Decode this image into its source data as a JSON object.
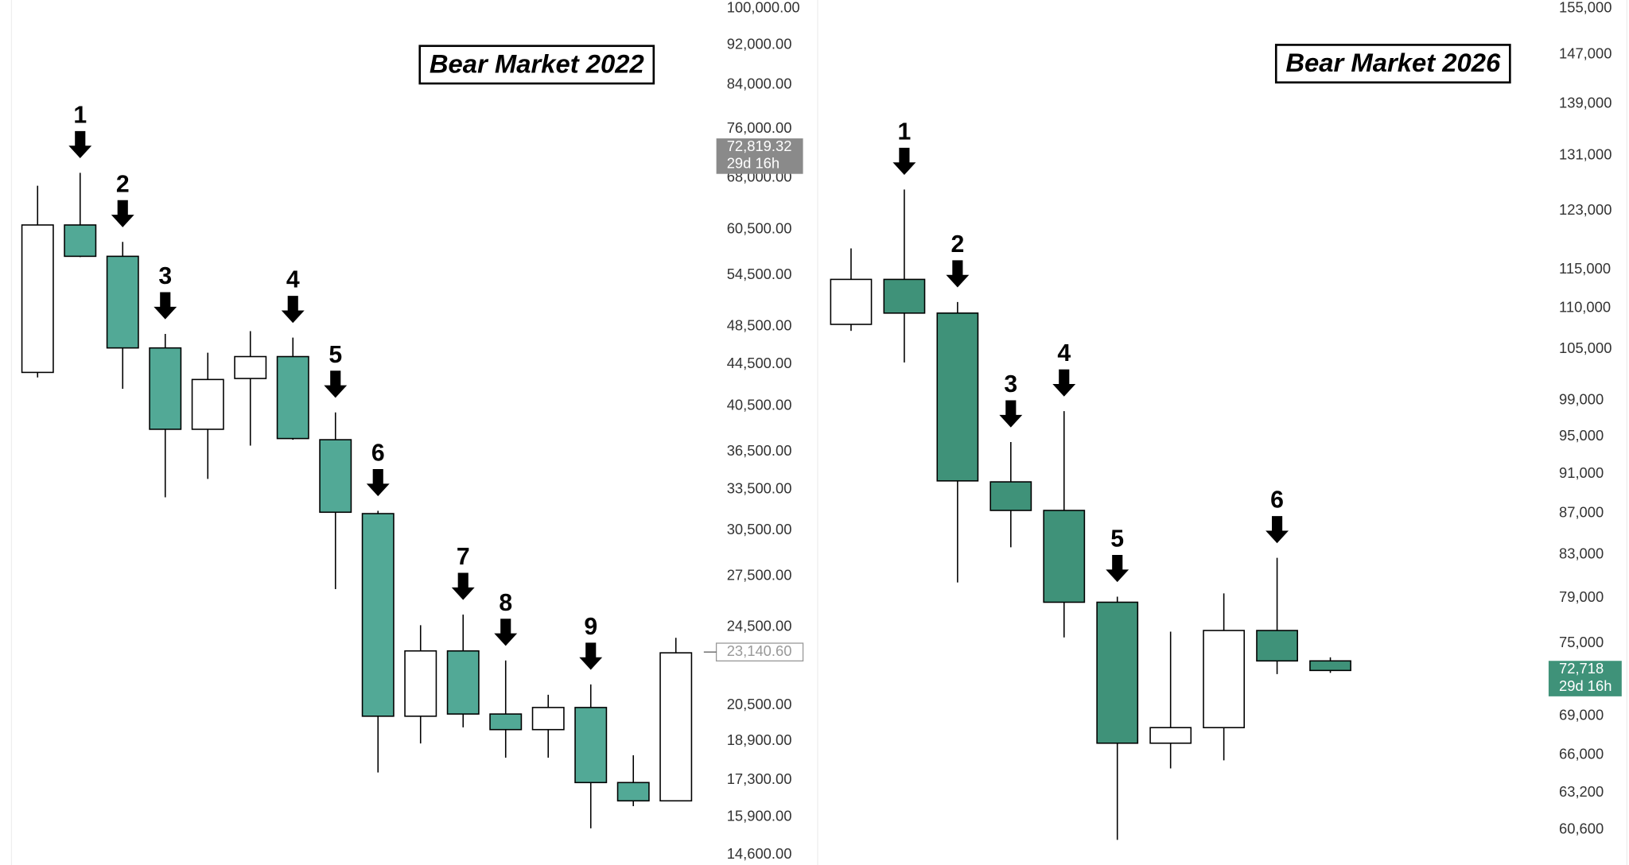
{
  "chart_data": [
    {
      "type": "candlestick",
      "title": "Bear Market 2022",
      "log_scale": true,
      "up_color": "#ffffff",
      "down_color": "#52a996",
      "open": [
        43700,
        61100,
        56900,
        46200,
        38400,
        43100,
        45300,
        37500,
        31700,
        20000,
        23200,
        20100,
        19400,
        20400,
        17200,
        16500
      ],
      "high": [
        66800,
        68800,
        58800,
        47700,
        45700,
        48000,
        47300,
        39900,
        31900,
        24600,
        25200,
        22700,
        21000,
        21500,
        18300,
        23900
      ],
      "low": [
        43200,
        56800,
        42100,
        32900,
        34300,
        37000,
        37500,
        26700,
        17600,
        18800,
        19500,
        18200,
        18200,
        15500,
        16300,
        16500
      ],
      "close": [
        61100,
        56900,
        46200,
        38400,
        43000,
        45300,
        37600,
        31800,
        20000,
        23200,
        20100,
        19400,
        20400,
        17200,
        16500,
        23100
      ],
      "arrow_labels": [
        null,
        "1",
        "2",
        "3",
        null,
        null,
        "4",
        "5",
        "6",
        null,
        "7",
        "8",
        null,
        "9",
        null,
        null
      ],
      "ylim": [
        14260,
        101900
      ],
      "yticks": [
        {
          "value": 100000,
          "label": "100,000.00"
        },
        {
          "value": 92000,
          "label": "92,000.00"
        },
        {
          "value": 84000,
          "label": "84,000.00"
        },
        {
          "value": 76000,
          "label": "76,000.00"
        },
        {
          "value": 68000,
          "label": "68,000.00"
        },
        {
          "value": 60500,
          "label": "60,500.00"
        },
        {
          "value": 54500,
          "label": "54,500.00"
        },
        {
          "value": 48500,
          "label": "48,500.00"
        },
        {
          "value": 44500,
          "label": "44,500.00"
        },
        {
          "value": 40500,
          "label": "40,500.00"
        },
        {
          "value": 36500,
          "label": "36,500.00"
        },
        {
          "value": 33500,
          "label": "33,500.00"
        },
        {
          "value": 30500,
          "label": "30,500.00"
        },
        {
          "value": 27500,
          "label": "27,500.00"
        },
        {
          "value": 24500,
          "label": "24,500.00"
        },
        {
          "value": 20500,
          "label": "20,500.00"
        },
        {
          "value": 18900,
          "label": "18,900.00"
        },
        {
          "value": 17300,
          "label": "17,300.00"
        },
        {
          "value": 15900,
          "label": "15,900.00"
        },
        {
          "value": 14600,
          "label": "14,600.00"
        }
      ],
      "price_tags": [
        {
          "value": 72819.32,
          "label": "72,819.32",
          "countdown": "29d 16h",
          "color": "#8a8a8a"
        },
        {
          "value": 23140.6,
          "label": "23,140.60",
          "color": "#ffffff"
        }
      ]
    },
    {
      "type": "candlestick",
      "title": "Bear Market 2026",
      "log_scale": true,
      "up_color": "#ffffff",
      "down_color": "#3f9279",
      "open": [
        108000,
        113700,
        109400,
        90200,
        87300,
        78600,
        66900,
        68100,
        76100,
        73500
      ],
      "high": [
        117800,
        126000,
        110800,
        94400,
        97800,
        79100,
        76000,
        79400,
        82700,
        73800
      ],
      "low": [
        107200,
        103400,
        80400,
        83700,
        75500,
        59900,
        65000,
        65600,
        72400,
        72500
      ],
      "close": [
        113700,
        109400,
        90300,
        87300,
        78600,
        66900,
        68100,
        76100,
        73500,
        72700
      ],
      "arrow_labels": [
        null,
        "1",
        "2",
        "3",
        "4",
        "5",
        null,
        null,
        "6",
        null
      ],
      "ylim": [
        58200,
        156500
      ],
      "yticks": [
        {
          "value": 155000,
          "label": "155,000"
        },
        {
          "value": 147000,
          "label": "147,000"
        },
        {
          "value": 139000,
          "label": "139,000"
        },
        {
          "value": 131000,
          "label": "131,000"
        },
        {
          "value": 123000,
          "label": "123,000"
        },
        {
          "value": 115000,
          "label": "115,000"
        },
        {
          "value": 110000,
          "label": "110,000"
        },
        {
          "value": 105000,
          "label": "105,000"
        },
        {
          "value": 99000,
          "label": "99,000"
        },
        {
          "value": 95000,
          "label": "95,000"
        },
        {
          "value": 91000,
          "label": "91,000"
        },
        {
          "value": 87000,
          "label": "87,000"
        },
        {
          "value": 83000,
          "label": "83,000"
        },
        {
          "value": 79000,
          "label": "79,000"
        },
        {
          "value": 75000,
          "label": "75,000"
        },
        {
          "value": 69000,
          "label": "69,000"
        },
        {
          "value": 66000,
          "label": "66,000"
        },
        {
          "value": 63200,
          "label": "63,200"
        },
        {
          "value": 60600,
          "label": "60,600"
        }
      ],
      "price_tags": [
        {
          "value": 72718,
          "label": "72,718",
          "countdown": "29d 16h",
          "color": "#3f9279"
        }
      ]
    }
  ]
}
